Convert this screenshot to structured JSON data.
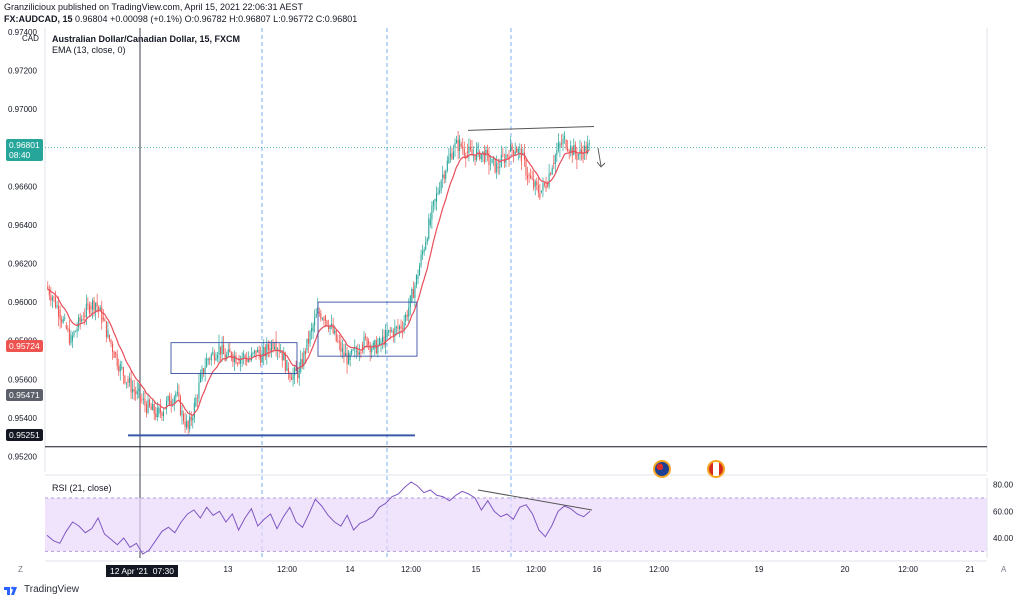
{
  "header": {
    "publisher_line": "Granzilicioux published on TradingView.com, April 15, 2021 22:06:31 AEST",
    "symbol_line": "FX:AUDCAD, 15",
    "ohlc": "0.96804 +0.00098 (+0.1%) O:0.96782 H:0.96807 L:0.96772 C:0.96801"
  },
  "main_pane": {
    "currency": "CAD",
    "title": "Australian Dollar/Canadian Dollar, 15, FXCM",
    "indicator": "EMA (13, close, 0)"
  },
  "rsi_pane": {
    "title": "RSI (21, close)"
  },
  "badges": {
    "last_price": "0.96801",
    "countdown": "08:40",
    "ema_value": "0.95724",
    "line_a": "0.95471",
    "line_b": "0.95251"
  },
  "x_axis": {
    "labels": [
      "13",
      "12:00",
      "14",
      "12:00",
      "15",
      "12:00",
      "16",
      "12:00",
      "19",
      "20",
      "12:00",
      "21"
    ],
    "crosshair_label": "12 Apr '21  07:30",
    "left_button": "Z",
    "right_button": "A"
  },
  "footer": {
    "brand": "TradingView"
  },
  "colors": {
    "up": "#26a69a",
    "down": "#ef5350",
    "ema": "#e84e5a",
    "rsi": "#7e57c2",
    "rsi_band": "#e9d7fb",
    "accent": "#2962ff"
  },
  "chart_data": {
    "type": "candlestick",
    "y_ticks": [
      "0.97400",
      "0.97200",
      "0.97000",
      "0.96800",
      "0.96600",
      "0.96400",
      "0.96200",
      "0.96000",
      "0.95800",
      "0.95600",
      "0.95400",
      "0.95200"
    ],
    "ylim": [
      0.9512,
      0.9742
    ],
    "price_path": [
      0.9608,
      0.9603,
      0.9596,
      0.9588,
      0.958,
      0.9587,
      0.9593,
      0.9598,
      0.96,
      0.9592,
      0.9583,
      0.9574,
      0.9566,
      0.956,
      0.9555,
      0.9551,
      0.9547,
      0.9544,
      0.9542,
      0.9545,
      0.9549,
      0.9553,
      0.9542,
      0.9534,
      0.9546,
      0.956,
      0.957,
      0.9573,
      0.9577,
      0.9571,
      0.9573,
      0.9571,
      0.9572,
      0.957,
      0.9574,
      0.9572,
      0.9576,
      0.958,
      0.9575,
      0.9566,
      0.9562,
      0.9564,
      0.9575,
      0.9585,
      0.9595,
      0.9593,
      0.9588,
      0.958,
      0.9574,
      0.957,
      0.9574,
      0.9578,
      0.958,
      0.9576,
      0.9578,
      0.9582,
      0.9585,
      0.9586,
      0.959,
      0.96,
      0.9612,
      0.9626,
      0.964,
      0.9652,
      0.9664,
      0.9672,
      0.968,
      0.9682,
      0.9678,
      0.9676,
      0.9678,
      0.9676,
      0.9672,
      0.967,
      0.9674,
      0.9678,
      0.968,
      0.9676,
      0.9666,
      0.966,
      0.9657,
      0.9661,
      0.9672,
      0.968,
      0.9684,
      0.968,
      0.9676,
      0.9678,
      0.968
    ],
    "rsi": {
      "ylim": [
        25,
        85
      ],
      "y_ticks": [
        "80.00",
        "60.00",
        "40.00"
      ],
      "band": [
        30,
        70
      ],
      "values": [
        42,
        38,
        36,
        45,
        52,
        49,
        44,
        47,
        55,
        43,
        39,
        35,
        40,
        33,
        36,
        28,
        31,
        38,
        45,
        48,
        44,
        52,
        58,
        61,
        55,
        63,
        57,
        60,
        52,
        58,
        46,
        55,
        62,
        49,
        54,
        58,
        47,
        56,
        63,
        52,
        48,
        58,
        69,
        64,
        57,
        52,
        49,
        57,
        46,
        51,
        53,
        56,
        63,
        66,
        71,
        73,
        78,
        82,
        79,
        74,
        76,
        72,
        71,
        68,
        72,
        75,
        73,
        70,
        61,
        68,
        60,
        56,
        58,
        54,
        63,
        65,
        58,
        46,
        41,
        49,
        60,
        64,
        62,
        58,
        56,
        60
      ]
    },
    "annotations": {
      "support_level": 0.9531,
      "horizontal_line": 0.95251,
      "resistance_trendline": [
        0.9689,
        0.9691
      ]
    }
  }
}
